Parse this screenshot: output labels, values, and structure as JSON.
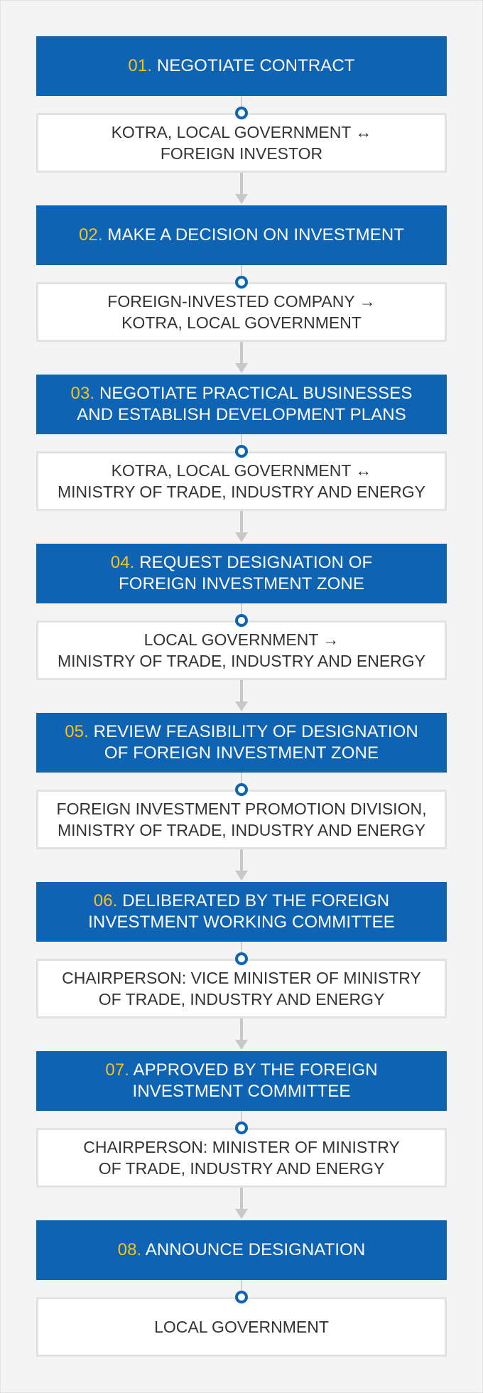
{
  "colors": {
    "step_background": "#0e63b3",
    "step_number": "#f6c21c",
    "connector_dot": "#0e63b3",
    "arrow": "#c8c8c8",
    "box_border": "#e2e2e2"
  },
  "steps": [
    {
      "num": "01.",
      "lines": [
        "NEGOTIATE CONTRACT"
      ],
      "actor": [
        "KOTRA, LOCAL GOVERNMENT ↔",
        "FOREIGN INVESTOR"
      ]
    },
    {
      "num": "02.",
      "lines": [
        "MAKE A DECISION ON INVESTMENT"
      ],
      "actor": [
        "FOREIGN-INVESTED COMPANY  →",
        "KOTRA, LOCAL GOVERNMENT"
      ]
    },
    {
      "num": "03.",
      "lines": [
        "NEGOTIATE PRACTICAL BUSINESSES",
        "AND ESTABLISH DEVELOPMENT PLANS"
      ],
      "actor": [
        "KOTRA, LOCAL GOVERNMENT ↔",
        "MINISTRY OF TRADE, INDUSTRY AND ENERGY"
      ]
    },
    {
      "num": "04.",
      "lines": [
        "REQUEST DESIGNATION OF",
        "FOREIGN INVESTMENT ZONE"
      ],
      "actor": [
        "LOCAL GOVERNMENT →",
        "MINISTRY OF TRADE, INDUSTRY AND ENERGY"
      ]
    },
    {
      "num": "05.",
      "lines": [
        "REVIEW FEASIBILITY OF DESIGNATION",
        "OF FOREIGN INVESTMENT ZONE"
      ],
      "actor": [
        "FOREIGN INVESTMENT PROMOTION DIVISION,",
        "MINISTRY OF TRADE, INDUSTRY AND ENERGY"
      ]
    },
    {
      "num": "06.",
      "lines": [
        "DELIBERATED BY THE FOREIGN",
        "INVESTMENT WORKING COMMITTEE"
      ],
      "actor": [
        "CHAIRPERSON: VICE MINISTER OF MINISTRY",
        "OF TRADE, INDUSTRY AND ENERGY"
      ]
    },
    {
      "num": "07.",
      "lines": [
        "APPROVED BY THE FOREIGN",
        "INVESTMENT COMMITTEE"
      ],
      "actor": [
        "CHAIRPERSON: MINISTER OF MINISTRY",
        "OF TRADE, INDUSTRY AND ENERGY"
      ]
    },
    {
      "num": "08.",
      "lines": [
        "ANNOUNCE DESIGNATION"
      ],
      "actor": [
        "LOCAL GOVERNMENT"
      ]
    }
  ]
}
